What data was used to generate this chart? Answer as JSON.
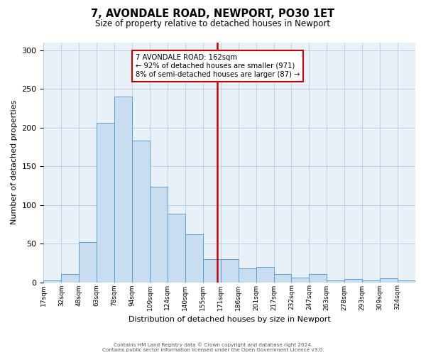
{
  "title": "7, AVONDALE ROAD, NEWPORT, PO30 1ET",
  "subtitle": "Size of property relative to detached houses in Newport",
  "xlabel": "Distribution of detached houses by size in Newport",
  "ylabel": "Number of detached properties",
  "bar_color": "#c9ddf0",
  "bar_edge_color": "#5a9fd4",
  "bin_labels": [
    "17sqm",
    "32sqm",
    "48sqm",
    "63sqm",
    "78sqm",
    "94sqm",
    "109sqm",
    "124sqm",
    "140sqm",
    "155sqm",
    "171sqm",
    "186sqm",
    "201sqm",
    "217sqm",
    "232sqm",
    "247sqm",
    "263sqm",
    "278sqm",
    "293sqm",
    "309sqm",
    "324sqm"
  ],
  "bar_heights": [
    2,
    11,
    52,
    206,
    240,
    183,
    124,
    89,
    62,
    30,
    30,
    18,
    20,
    11,
    6,
    11,
    2,
    4,
    2,
    5,
    2
  ],
  "n_bins": 21,
  "vline_bin": 9.8,
  "vline_color": "#cc0000",
  "annotation_text": "7 AVONDALE ROAD: 162sqm\n← 92% of detached houses are smaller (971)\n8% of semi-detached houses are larger (87) →",
  "annotation_box_facecolor": "#ffffff",
  "annotation_box_edgecolor": "#cc0000",
  "ylim": [
    0,
    310
  ],
  "yticks": [
    0,
    50,
    100,
    150,
    200,
    250,
    300
  ],
  "facecolor": "#e8f0f8",
  "footnote1": "Contains HM Land Registry data © Crown copyright and database right 2024.",
  "footnote2": "Contains public sector information licensed under the Open Government Licence v3.0."
}
